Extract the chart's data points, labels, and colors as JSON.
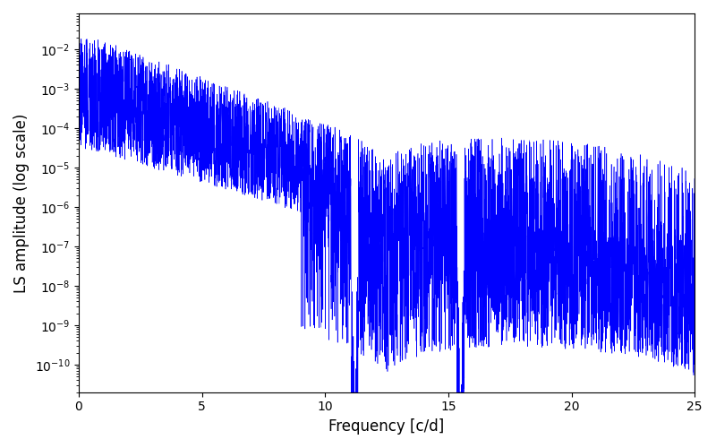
{
  "xlabel": "Frequency [c/d]",
  "ylabel": "LS amplitude (log scale)",
  "color": "#0000ff",
  "xmin": 0,
  "xmax": 25,
  "ylim_min": 2e-11,
  "ylim_max": 0.08,
  "seed": 7,
  "n_points": 5000,
  "figsize": [
    8.0,
    5.0
  ],
  "dpi": 100,
  "background": "#ffffff",
  "linewidth": 0.4
}
